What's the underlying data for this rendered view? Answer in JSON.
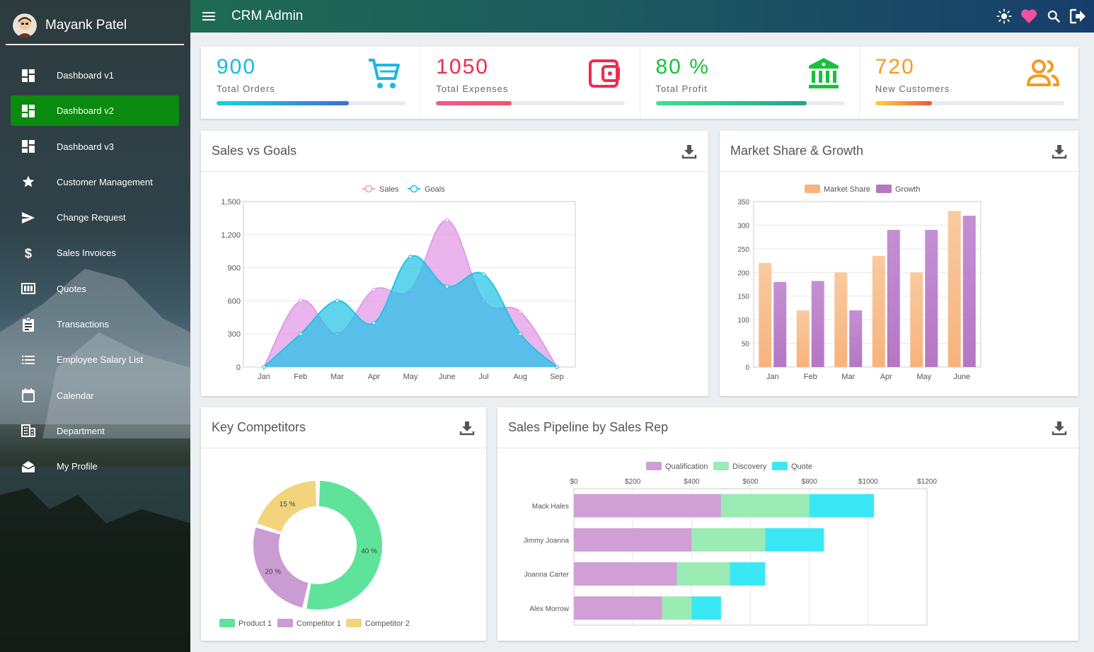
{
  "sidebar": {
    "user_name": "Mayank Patel",
    "items": [
      {
        "label": "Dashboard v1",
        "icon": "dashboard-icon",
        "active": false
      },
      {
        "label": "Dashboard v2",
        "icon": "dashboard-icon",
        "active": true
      },
      {
        "label": "Dashboard v3",
        "icon": "dashboard-icon",
        "active": false
      },
      {
        "label": "Customer Management",
        "icon": "star-icon",
        "active": false
      },
      {
        "label": "Change Request",
        "icon": "send-icon",
        "active": false
      },
      {
        "label": "Sales Invoices",
        "icon": "dollar-icon",
        "active": false
      },
      {
        "label": "Quotes",
        "icon": "quotes-icon",
        "active": false
      },
      {
        "label": "Transactions",
        "icon": "clipboard-icon",
        "active": false
      },
      {
        "label": "Employee Salary List",
        "icon": "list-icon",
        "active": false
      },
      {
        "label": "Calendar",
        "icon": "calendar-icon",
        "active": false
      },
      {
        "label": "Department",
        "icon": "building-icon",
        "active": false
      },
      {
        "label": "My Profile",
        "icon": "envelope-icon",
        "active": false
      }
    ]
  },
  "topbar": {
    "title": "CRM Admin"
  },
  "stats": [
    {
      "value": "900",
      "label": "Total Orders",
      "color": "#1ab9e2",
      "progress": 0.7,
      "grad": [
        "#19d3da",
        "#3d6fd6"
      ],
      "icon": "cart-icon"
    },
    {
      "value": "1050",
      "label": "Total Expenses",
      "color": "#ef2b4b",
      "progress": 0.4,
      "grad": [
        "#f05a8a",
        "#f2546a"
      ],
      "icon": "wallet-icon"
    },
    {
      "value": "80 %",
      "label": "Total Profit",
      "color": "#18c13c",
      "progress": 0.8,
      "grad": [
        "#3fe08c",
        "#21a58a"
      ],
      "icon": "bank-icon"
    },
    {
      "value": "720",
      "label": "New Customers",
      "color": "#f79a1e",
      "progress": 0.3,
      "grad": [
        "#fbd13c",
        "#f2553e"
      ],
      "icon": "users-icon"
    }
  ],
  "panels": {
    "sales_goals": "Sales vs Goals",
    "market": "Market Share & Growth",
    "competitors": "Key Competitors",
    "pipeline": "Sales Pipeline by Sales Rep"
  },
  "colors": {
    "sales": "#e19ce6",
    "goals": "#22c3e6",
    "market_share": "#f7b37c",
    "growth": "#b477c4",
    "qualification": "#cf9fd5",
    "discovery": "#9aebb4",
    "quote": "#39e8f4",
    "product1": "#5fe39a",
    "competitor1": "#cb9cd3",
    "competitor2": "#f1d47c"
  },
  "chart_data": [
    {
      "id": "sales_goals",
      "type": "area",
      "title": "Sales vs Goals",
      "categories": [
        "Jan",
        "Feb",
        "Mar",
        "Apr",
        "May",
        "June",
        "Jul",
        "Aug",
        "Sep"
      ],
      "series": [
        {
          "name": "Sales",
          "values": [
            0,
            600,
            300,
            700,
            700,
            1330,
            600,
            500,
            0
          ]
        },
        {
          "name": "Goals",
          "values": [
            0,
            300,
            600,
            400,
            1000,
            730,
            840,
            300,
            0
          ]
        }
      ],
      "ylim": [
        0,
        1500
      ],
      "yticks": [
        "0",
        "300",
        "600",
        "900",
        "1,200",
        "1,500"
      ]
    },
    {
      "id": "market",
      "type": "bar",
      "title": "Market Share & Growth",
      "categories": [
        "Jan",
        "Feb",
        "Mar",
        "Apr",
        "May",
        "June"
      ],
      "series": [
        {
          "name": "Market Share",
          "values": [
            220,
            120,
            200,
            235,
            200,
            330
          ]
        },
        {
          "name": "Growth",
          "values": [
            180,
            182,
            120,
            290,
            290,
            320
          ]
        }
      ],
      "ylim": [
        0,
        350
      ],
      "yticks": [
        "0",
        "50",
        "100",
        "150",
        "200",
        "250",
        "300",
        "350"
      ]
    },
    {
      "id": "competitors",
      "type": "pie",
      "title": "Key Competitors",
      "labels": [
        "Product 1",
        "Competitor 1",
        "Competitor 2"
      ],
      "values": [
        40,
        20,
        15
      ],
      "value_labels": [
        "40 %",
        "20 %",
        "15 %"
      ]
    },
    {
      "id": "pipeline",
      "type": "bar",
      "orientation": "horizontal",
      "stacked": true,
      "title": "Sales Pipeline by Sales Rep",
      "categories": [
        "Mack Hales",
        "Jimmy Joanna",
        "Joanna Carter",
        "Alex Morrow"
      ],
      "series": [
        {
          "name": "Qualification",
          "values": [
            500,
            400,
            350,
            300
          ]
        },
        {
          "name": "Discovery",
          "values": [
            300,
            250,
            180,
            100
          ]
        },
        {
          "name": "Quote",
          "values": [
            220,
            200,
            120,
            100
          ]
        }
      ],
      "xlim": [
        0,
        1200
      ],
      "xticks": [
        "$0",
        "$200",
        "$400",
        "$600",
        "$800",
        "$1000",
        "$1200"
      ]
    }
  ]
}
